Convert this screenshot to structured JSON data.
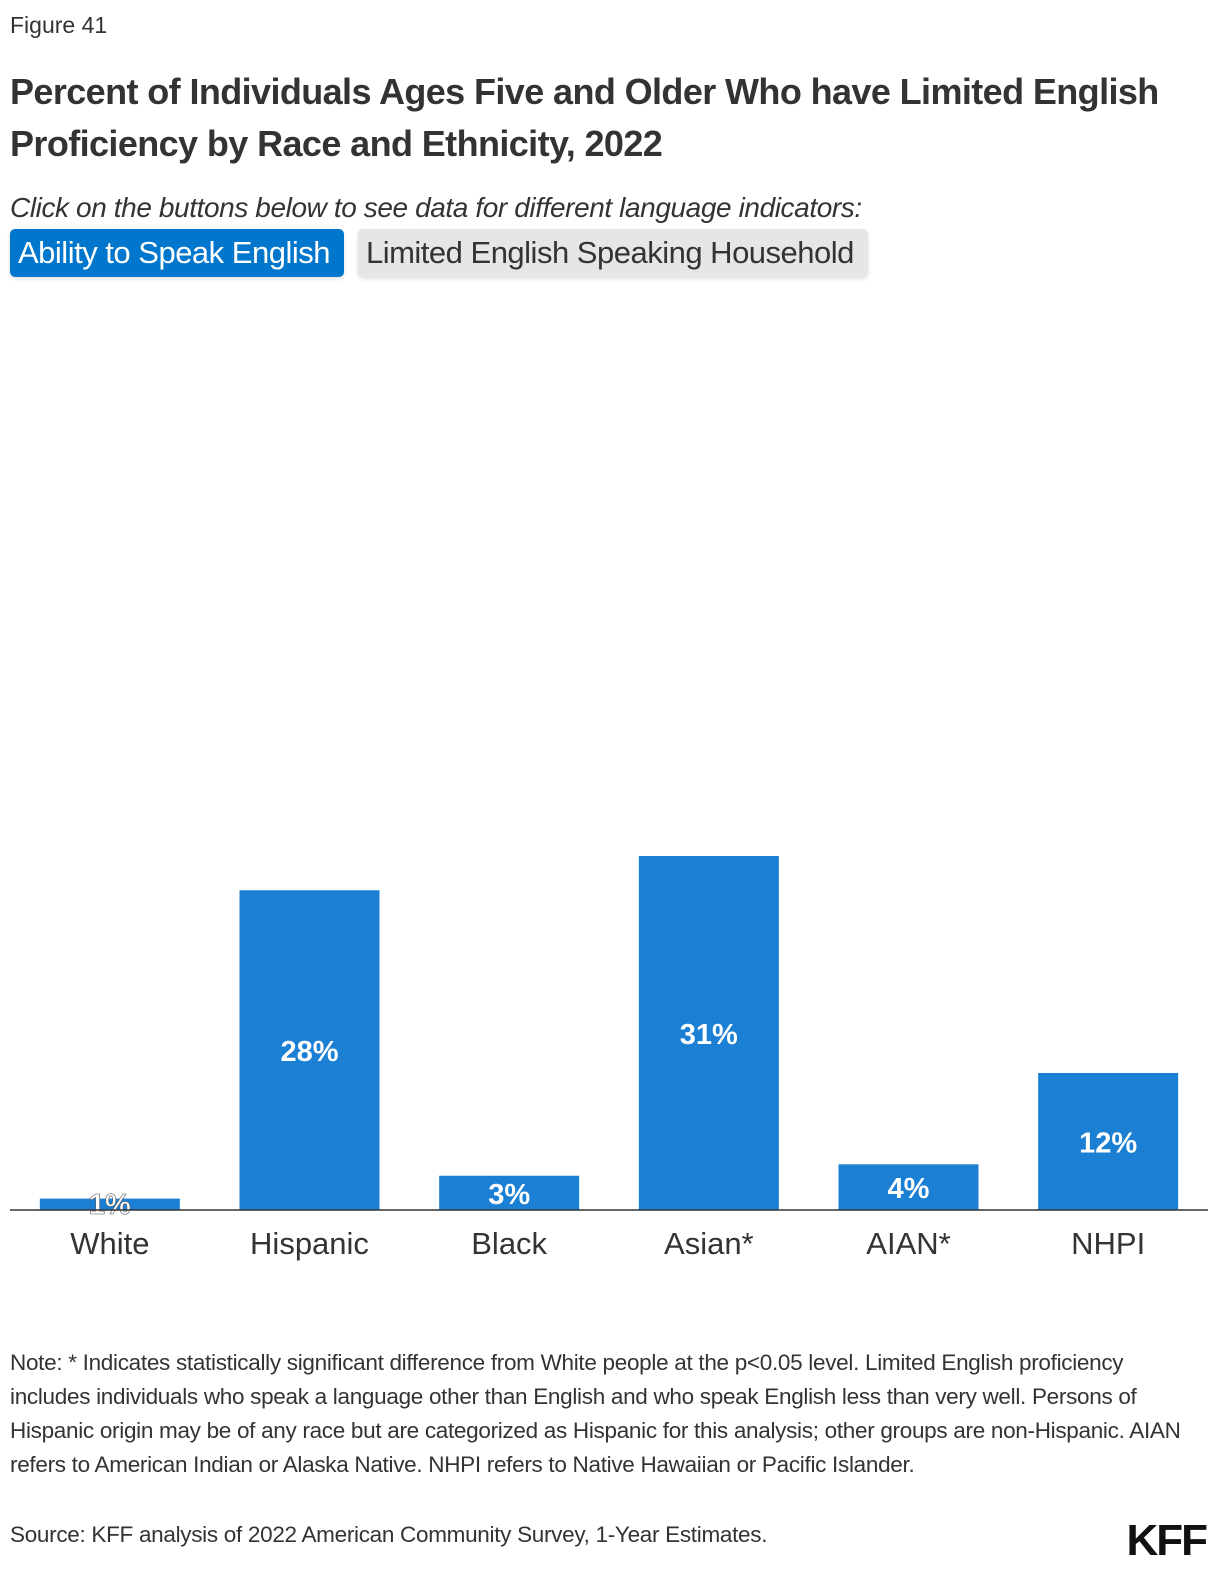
{
  "figure_label": "Figure 41",
  "subtitle": "Click on the buttons below to see data for different language indicators:",
  "buttons": [
    {
      "label": "Ability to Speak English",
      "active": true
    },
    {
      "label": "Limited English Speaking Household",
      "active": false
    }
  ],
  "colors": {
    "bar": "#1b7fd4",
    "active_button": "#0077cc",
    "inactive_button": "#e6e6e6"
  },
  "chart_data": {
    "type": "bar",
    "title": "Percent of Individuals Ages Five and Older Who have Limited English Proficiency by Race and Ethnicity, 2022",
    "categories": [
      "White",
      "Hispanic",
      "Black",
      "Asian*",
      "AIAN*",
      "NHPI"
    ],
    "values": [
      1,
      28,
      3,
      31,
      4,
      12
    ],
    "data_labels": [
      "1%",
      "28%",
      "3%",
      "31%",
      "4%",
      "12%"
    ],
    "unit": "%",
    "grid": false,
    "ylim": [
      0,
      31
    ]
  },
  "note": "Note: * Indicates statistically significant difference from White people at the p<0.05 level. Limited English proficiency includes individuals who speak a language other than English and who speak English less than very well. Persons of Hispanic origin may be of any race but are categorized as Hispanic for this analysis; other groups are non-Hispanic. AIAN refers to American Indian or Alaska Native. NHPI refers to Native Hawaiian or Pacific Islander.",
  "source": "Source: KFF analysis of 2022 American Community Survey, 1-Year Estimates.",
  "logo": "KFF"
}
